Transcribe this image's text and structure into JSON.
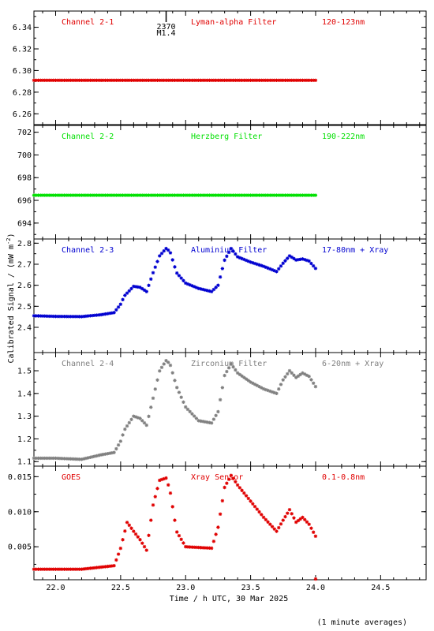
{
  "chart_data": [
    {
      "type": "scatter",
      "channel": "Channel 2-1",
      "filter": "Lyman-alpha Filter",
      "band": "120-123nm",
      "color": "#e00000",
      "ylim": [
        6.25,
        6.355
      ],
      "yticks": [
        6.26,
        6.28,
        6.3,
        6.32,
        6.34
      ],
      "ytick_labels": [
        "6.26",
        "6.28",
        "6.30",
        "6.32",
        "6.34"
      ],
      "series": [
        {
          "x": [
            21.833,
            24.0
          ],
          "y": [
            6.291,
            6.291
          ]
        }
      ],
      "annotation": {
        "x": 22.85,
        "number": "2370",
        "flare_class": "M1.4"
      }
    },
    {
      "type": "scatter",
      "channel": "Channel 2-2",
      "filter": "Herzberg Filter",
      "band": "190-222nm",
      "color": "#00e000",
      "ylim": [
        692.6,
        702.6
      ],
      "yticks": [
        694,
        696,
        698,
        700,
        702
      ],
      "ytick_labels": [
        "694",
        "696",
        "698",
        "700",
        "702"
      ],
      "series": [
        {
          "x": [
            21.833,
            24.0
          ],
          "y": [
            696.45,
            696.45
          ]
        }
      ]
    },
    {
      "type": "scatter",
      "channel": "Channel 2-3",
      "filter": "Aluminium Filter",
      "band": "17-80nm + Xray",
      "color": "#0000d0",
      "ylim": [
        2.28,
        2.82
      ],
      "yticks": [
        2.4,
        2.5,
        2.6,
        2.7,
        2.8
      ],
      "ytick_labels": [
        "2.4",
        "2.5",
        "2.6",
        "2.7",
        "2.8"
      ],
      "series": [
        {
          "x": [
            21.833,
            22.0,
            22.2,
            22.35,
            22.45,
            22.5,
            22.53,
            22.6,
            22.65,
            22.7,
            22.75,
            22.8,
            22.85,
            22.88,
            22.93,
            23.0,
            23.1,
            23.2,
            23.25,
            23.3,
            23.35,
            23.4,
            23.5,
            23.6,
            23.7,
            23.75,
            23.8,
            23.85,
            23.9,
            23.95,
            24.0
          ],
          "y": [
            2.455,
            2.452,
            2.451,
            2.46,
            2.47,
            2.51,
            2.55,
            2.595,
            2.59,
            2.57,
            2.66,
            2.74,
            2.775,
            2.76,
            2.66,
            2.61,
            2.585,
            2.57,
            2.6,
            2.72,
            2.775,
            2.735,
            2.71,
            2.69,
            2.665,
            2.705,
            2.74,
            2.72,
            2.725,
            2.715,
            2.68
          ]
        }
      ]
    },
    {
      "type": "scatter",
      "channel": "Channel 2-4",
      "filter": "Zirconium Filter",
      "band": "6-20nm + Xray",
      "color": "#808080",
      "ylim": [
        1.08,
        1.58
      ],
      "yticks": [
        1.1,
        1.2,
        1.3,
        1.4,
        1.5
      ],
      "ytick_labels": [
        "1.1",
        "1.2",
        "1.3",
        "1.4",
        "1.5"
      ],
      "series": [
        {
          "x": [
            21.833,
            22.0,
            22.2,
            22.35,
            22.45,
            22.5,
            22.53,
            22.6,
            22.65,
            22.7,
            22.75,
            22.8,
            22.85,
            22.88,
            22.93,
            23.0,
            23.1,
            23.2,
            23.25,
            23.3,
            23.35,
            23.4,
            23.5,
            23.6,
            23.7,
            23.75,
            23.8,
            23.85,
            23.9,
            23.95,
            24.0
          ],
          "y": [
            1.115,
            1.115,
            1.11,
            1.13,
            1.14,
            1.19,
            1.24,
            1.3,
            1.29,
            1.26,
            1.38,
            1.5,
            1.545,
            1.53,
            1.43,
            1.34,
            1.28,
            1.27,
            1.32,
            1.48,
            1.53,
            1.49,
            1.45,
            1.42,
            1.4,
            1.46,
            1.5,
            1.47,
            1.49,
            1.475,
            1.43
          ]
        }
      ]
    },
    {
      "type": "scatter",
      "channel": "GOES",
      "filter": "Xray Sensor",
      "band": "0.1-0.8nm",
      "color": "#e00000",
      "ylim": [
        0.0003,
        0.0165
      ],
      "yticks": [
        0.005,
        0.01,
        0.015
      ],
      "ytick_labels": [
        "0.005",
        "0.010",
        "0.015"
      ],
      "series": [
        {
          "x": [
            21.833,
            22.0,
            22.2,
            22.35,
            22.45,
            22.5,
            22.55,
            22.6,
            22.65,
            22.7,
            22.75,
            22.8,
            22.85,
            22.88,
            22.93,
            23.0,
            23.1,
            23.2,
            23.25,
            23.3,
            23.35,
            23.4,
            23.5,
            23.6,
            23.7,
            23.75,
            23.8,
            23.85,
            23.9,
            23.95,
            24.0
          ],
          "y": [
            0.0018,
            0.0018,
            0.0018,
            0.0021,
            0.0023,
            0.0048,
            0.0085,
            0.0072,
            0.006,
            0.0045,
            0.011,
            0.0145,
            0.0148,
            0.013,
            0.0072,
            0.005,
            0.0049,
            0.0048,
            0.0078,
            0.0135,
            0.0152,
            0.0138,
            0.0115,
            0.0092,
            0.0072,
            0.0088,
            0.0103,
            0.0085,
            0.0092,
            0.0082,
            0.0065
          ]
        }
      ],
      "outlier": {
        "x": 24.0,
        "y": 0.0004
      }
    }
  ],
  "x_axis": {
    "xlim": [
      21.833,
      24.85
    ],
    "ticks": [
      22.0,
      22.5,
      23.0,
      23.5,
      24.0,
      24.5
    ],
    "tick_labels": [
      "22.0",
      "22.5",
      "23.0",
      "23.5",
      "24.0",
      "24.5"
    ],
    "label": "Time / h UTC, 30 Mar 2025"
  },
  "y_axis_label_main": "Calibrated Signal / (mW m",
  "y_axis_label_sup": "-2",
  "y_axis_label_end": ")",
  "footnote": "(1 minute averages)"
}
